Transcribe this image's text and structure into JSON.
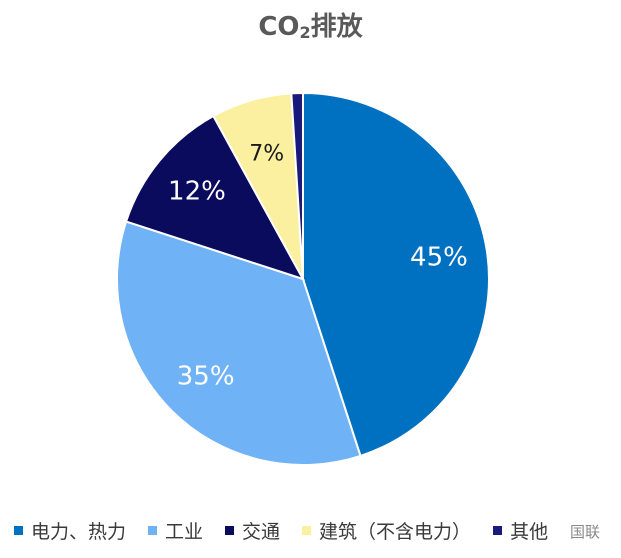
{
  "chart_data": {
    "type": "pie",
    "title": "CO₂排放",
    "title_main": "CO",
    "title_sub": "2",
    "title_rest": "排放",
    "categories": [
      "电力、热力",
      "工业",
      "交通",
      "建筑（不含电力）",
      "其他"
    ],
    "values": [
      45,
      35,
      12,
      7,
      1
    ],
    "data_labels": [
      "45%",
      "35%",
      "12%",
      "7%",
      ""
    ],
    "colors": [
      "#0070C0",
      "#6FB2F5",
      "#0B0B5E",
      "#FAF0A0",
      "#1A1A7A"
    ],
    "label_colors": [
      "#ffffff",
      "#ffffff",
      "#ffffff",
      "#1a1a1a",
      "#ffffff"
    ],
    "legend": "bottom",
    "start_angle_deg": 0,
    "direction": "clockwise"
  },
  "watermark": "国联"
}
